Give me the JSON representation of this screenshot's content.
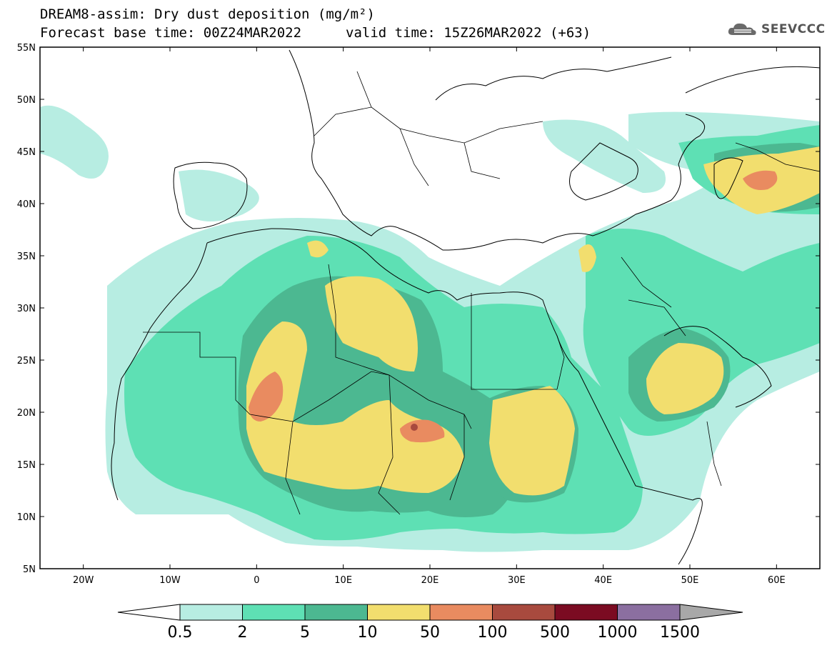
{
  "header": {
    "title_line1": "DREAM8-assim: Dry dust deposition (mg/m²)",
    "title_line2": "Forecast base time: 00Z24MAR2022",
    "valid_time": "valid time: 15Z26MAR2022 (+63)",
    "logo_text": "SEEVCCC",
    "logo_icon": "cloud-icon"
  },
  "map": {
    "lat_labels": [
      "55N",
      "50N",
      "45N",
      "40N",
      "35N",
      "30N",
      "25N",
      "20N",
      "15N",
      "10N",
      "5N"
    ],
    "lon_labels": [
      "20W",
      "10W",
      "0",
      "10E",
      "20E",
      "30E",
      "40E",
      "50E",
      "60E"
    ],
    "lon_range": [
      -25,
      65
    ],
    "lat_range": [
      5,
      55
    ]
  },
  "legend": {
    "labels": [
      "0.5",
      "2",
      "5",
      "10",
      "50",
      "100",
      "500",
      "1000",
      "1500"
    ],
    "colors": [
      "#b7ede2",
      "#5ee0b4",
      "#4cb891",
      "#f2de6e",
      "#e98b60",
      "#a84a3e",
      "#7b0b22",
      "#8b6fa0"
    ],
    "under_color": "#ffffff",
    "over_color": "#a8a8a8"
  },
  "colors": {
    "coast": "#000000",
    "background": "#ffffff"
  }
}
